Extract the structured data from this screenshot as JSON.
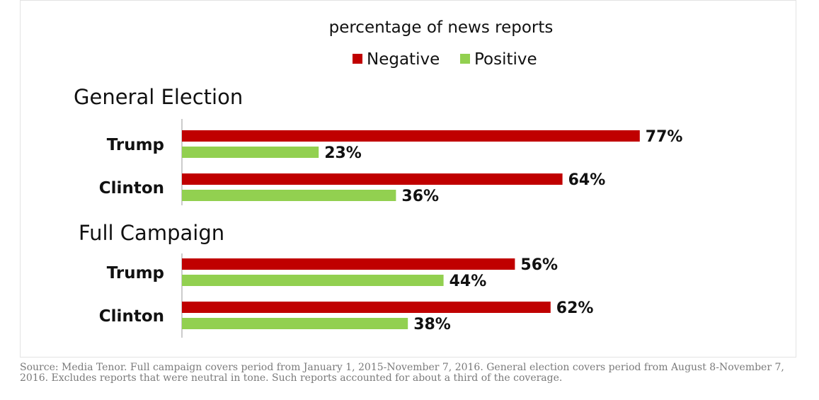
{
  "chart_data": {
    "type": "bar",
    "orientation": "horizontal",
    "subtitle": "percentage of news reports",
    "legend": [
      {
        "name": "Negative",
        "color": "#c00000"
      },
      {
        "name": "Positive",
        "color": "#92d050"
      }
    ],
    "panels": [
      {
        "title": "General Election",
        "categories": [
          "Trump",
          "Clinton"
        ],
        "series": [
          {
            "name": "Negative",
            "values": [
              77,
              64
            ],
            "labels": [
              "77%",
              "64%"
            ]
          },
          {
            "name": "Positive",
            "values": [
              23,
              36
            ],
            "labels": [
              "23%",
              "36%"
            ]
          }
        ]
      },
      {
        "title": "Full Campaign",
        "categories": [
          "Trump",
          "Clinton"
        ],
        "series": [
          {
            "name": "Negative",
            "values": [
              56,
              62
            ],
            "labels": [
              "56%",
              "62%"
            ]
          },
          {
            "name": "Positive",
            "values": [
              44,
              38
            ],
            "labels": [
              "44%",
              "38%"
            ]
          }
        ]
      }
    ],
    "xlim": [
      0,
      100
    ],
    "grid": false,
    "legend_position": "top-center"
  },
  "footer": {
    "source": "Source: Media Tenor. Full campaign covers period from January 1, 2015-November 7, 2016. General election covers period from August 8-November 7, 2016. Excludes reports that were neutral in tone. Such reports accounted for about a third of the coverage."
  }
}
